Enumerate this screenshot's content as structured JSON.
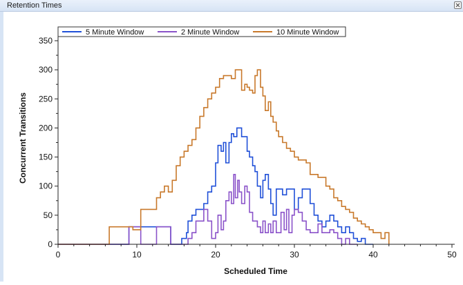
{
  "window": {
    "title": "Retention Times"
  },
  "colors": {
    "titlebar": "#dde8f6",
    "series_5": "#1f4fd8",
    "series_2": "#8a52c9",
    "series_10": "#c8782a"
  },
  "chart_data": {
    "type": "line",
    "xlabel": "Scheduled Time",
    "ylabel": "Concurrent Transitions",
    "xlim": [
      0,
      50
    ],
    "ylim": [
      0,
      350
    ],
    "xticks": [
      0,
      10,
      20,
      30,
      40,
      50
    ],
    "yticks": [
      0,
      50,
      100,
      150,
      200,
      250,
      300,
      350
    ],
    "legend_position": "top",
    "series": [
      {
        "name": "5 Minute Window",
        "color": "#1f4fd8",
        "x": [
          0,
          9.0,
          9.0,
          14.3,
          14.3,
          15.7,
          15.7,
          16.3,
          16.5,
          17.0,
          17.5,
          18.5,
          19.0,
          19.5,
          20.0,
          20.3,
          20.7,
          21.0,
          21.3,
          21.7,
          22.0,
          22.3,
          22.7,
          23.0,
          23.3,
          23.7,
          24.0,
          24.3,
          24.7,
          25.0,
          25.3,
          25.7,
          26.0,
          26.3,
          26.7,
          27.0,
          27.3,
          27.7,
          28.0,
          28.5,
          29.0,
          29.5,
          30.0,
          30.5,
          31.0,
          31.5,
          32.0,
          32.5,
          33.0,
          33.5,
          34.0,
          34.5,
          35.0,
          35.5,
          36.0,
          36.5,
          37.0,
          37.5,
          38.0,
          38.5,
          39.0,
          39.5,
          40.0
        ],
        "y": [
          0,
          0,
          30,
          30,
          0,
          0,
          10,
          20,
          40,
          50,
          60,
          70,
          90,
          100,
          140,
          170,
          160,
          175,
          140,
          175,
          190,
          185,
          200,
          200,
          185,
          185,
          160,
          150,
          135,
          125,
          100,
          80,
          110,
          120,
          95,
          70,
          50,
          95,
          95,
          85,
          95,
          95,
          60,
          80,
          95,
          95,
          70,
          50,
          40,
          30,
          40,
          50,
          40,
          30,
          20,
          30,
          20,
          10,
          5,
          10,
          0,
          0,
          0
        ]
      },
      {
        "name": "2 Minute Window",
        "color": "#8a52c9",
        "x": [
          0,
          9.0,
          9.0,
          10.5,
          10.5,
          12.5,
          12.5,
          14.3,
          14.3,
          16.0,
          16.5,
          17.0,
          17.5,
          18.5,
          19.0,
          19.5,
          20.0,
          20.3,
          20.7,
          21.0,
          21.3,
          21.7,
          22.0,
          22.3,
          22.5,
          22.8,
          23.0,
          23.3,
          23.7,
          24.0,
          24.3,
          24.7,
          25.0,
          25.3,
          25.7,
          26.0,
          26.3,
          26.7,
          27.0,
          27.3,
          27.7,
          28.0,
          28.3,
          28.7,
          29.0,
          29.3,
          29.7,
          30.0,
          30.5,
          31.0,
          31.5,
          32.0,
          32.5,
          33.0,
          33.5,
          34.0,
          34.5,
          35.0,
          35.5,
          36.0,
          36.5,
          37.0,
          38.0
        ],
        "y": [
          0,
          0,
          30,
          30,
          0,
          0,
          30,
          30,
          0,
          0,
          10,
          20,
          40,
          60,
          40,
          10,
          20,
          50,
          25,
          40,
          75,
          90,
          70,
          120,
          80,
          110,
          90,
          70,
          100,
          90,
          55,
          40,
          40,
          30,
          20,
          40,
          20,
          35,
          20,
          40,
          20,
          20,
          55,
          25,
          60,
          20,
          50,
          60,
          55,
          40,
          25,
          20,
          20,
          35,
          20,
          20,
          25,
          20,
          10,
          0,
          10,
          0,
          0
        ]
      },
      {
        "name": "10 Minute Window",
        "color": "#c8782a",
        "x": [
          0,
          6.5,
          6.5,
          9.0,
          9.5,
          10.5,
          12.5,
          13.0,
          13.5,
          14.0,
          14.5,
          15.0,
          15.5,
          16.0,
          16.5,
          17.0,
          17.5,
          18.0,
          18.5,
          19.0,
          19.5,
          20.0,
          20.5,
          21.0,
          21.5,
          22.0,
          22.5,
          23.0,
          23.3,
          23.7,
          24.0,
          24.3,
          24.7,
          25.0,
          25.3,
          25.7,
          26.0,
          26.3,
          26.7,
          27.0,
          27.3,
          27.7,
          28.0,
          28.5,
          29.0,
          29.5,
          30.0,
          30.5,
          31.0,
          31.5,
          32.0,
          32.5,
          33.0,
          33.5,
          34.0,
          34.5,
          35.0,
          35.5,
          36.0,
          36.5,
          37.0,
          37.5,
          38.0,
          38.5,
          39.0,
          39.5,
          40.0,
          40.5,
          41.0,
          41.5,
          42.0
        ],
        "y": [
          0,
          0,
          30,
          30,
          25,
          60,
          80,
          90,
          100,
          90,
          110,
          135,
          150,
          160,
          170,
          180,
          200,
          220,
          235,
          250,
          260,
          270,
          285,
          290,
          290,
          285,
          300,
          300,
          265,
          275,
          270,
          265,
          260,
          290,
          300,
          270,
          255,
          230,
          245,
          220,
          210,
          195,
          185,
          175,
          165,
          160,
          150,
          145,
          145,
          140,
          120,
          120,
          115,
          115,
          100,
          95,
          80,
          75,
          65,
          60,
          55,
          45,
          40,
          35,
          30,
          25,
          20,
          20,
          10,
          20,
          0
        ]
      }
    ]
  }
}
